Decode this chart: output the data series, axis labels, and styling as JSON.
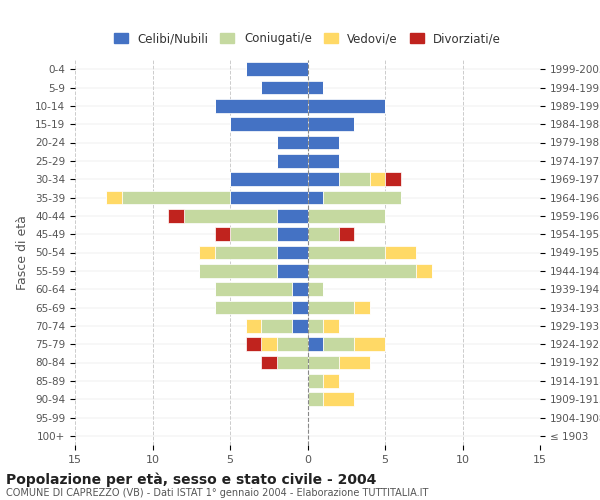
{
  "age_groups": [
    "100+",
    "95-99",
    "90-94",
    "85-89",
    "80-84",
    "75-79",
    "70-74",
    "65-69",
    "60-64",
    "55-59",
    "50-54",
    "45-49",
    "40-44",
    "35-39",
    "30-34",
    "25-29",
    "20-24",
    "15-19",
    "10-14",
    "5-9",
    "0-4"
  ],
  "birth_years": [
    "≤ 1903",
    "1904-1908",
    "1909-1913",
    "1914-1918",
    "1919-1923",
    "1924-1928",
    "1929-1933",
    "1934-1938",
    "1939-1943",
    "1944-1948",
    "1949-1953",
    "1954-1958",
    "1959-1963",
    "1964-1968",
    "1969-1973",
    "1974-1978",
    "1979-1983",
    "1984-1988",
    "1989-1993",
    "1994-1998",
    "1999-2003"
  ],
  "males": {
    "celibi": [
      0,
      0,
      0,
      0,
      0,
      0,
      1,
      1,
      1,
      2,
      2,
      2,
      2,
      5,
      5,
      2,
      2,
      5,
      6,
      3,
      4
    ],
    "coniugati": [
      0,
      0,
      0,
      0,
      2,
      2,
      2,
      5,
      5,
      5,
      4,
      3,
      6,
      7,
      0,
      0,
      0,
      0,
      0,
      0,
      0
    ],
    "vedovi": [
      0,
      0,
      0,
      0,
      0,
      1,
      1,
      0,
      0,
      0,
      1,
      0,
      0,
      1,
      0,
      0,
      0,
      0,
      0,
      0,
      0
    ],
    "divorziati": [
      0,
      0,
      0,
      0,
      1,
      1,
      0,
      0,
      0,
      0,
      0,
      1,
      1,
      0,
      0,
      0,
      0,
      0,
      0,
      0,
      0
    ]
  },
  "females": {
    "nubili": [
      0,
      0,
      0,
      0,
      0,
      1,
      0,
      0,
      0,
      0,
      0,
      0,
      0,
      1,
      2,
      2,
      2,
      3,
      5,
      1,
      0
    ],
    "coniugate": [
      0,
      0,
      1,
      1,
      2,
      2,
      1,
      3,
      1,
      7,
      5,
      2,
      5,
      5,
      2,
      0,
      0,
      0,
      0,
      0,
      0
    ],
    "vedove": [
      0,
      0,
      2,
      1,
      2,
      2,
      1,
      1,
      0,
      1,
      2,
      0,
      0,
      0,
      1,
      0,
      0,
      0,
      0,
      0,
      0
    ],
    "divorziate": [
      0,
      0,
      0,
      0,
      0,
      0,
      0,
      0,
      0,
      0,
      0,
      1,
      0,
      0,
      1,
      0,
      0,
      0,
      0,
      0,
      0
    ]
  },
  "colors": {
    "celibi": "#4472c4",
    "coniugati": "#c5d9a0",
    "vedovi": "#ffd966",
    "divorziati": "#c0231e"
  },
  "title": "Popolazione per età, sesso e stato civile - 2004",
  "subtitle": "COMUNE DI CAPREZZO (VB) - Dati ISTAT 1° gennaio 2004 - Elaborazione TUTTITALIA.IT",
  "ylabel_left": "Fasce di età",
  "xlim": 15,
  "legend_labels": [
    "Celibi/Nubili",
    "Coniugati/e",
    "Vedovi/e",
    "Divorziati/e"
  ],
  "background_color": "#ffffff"
}
